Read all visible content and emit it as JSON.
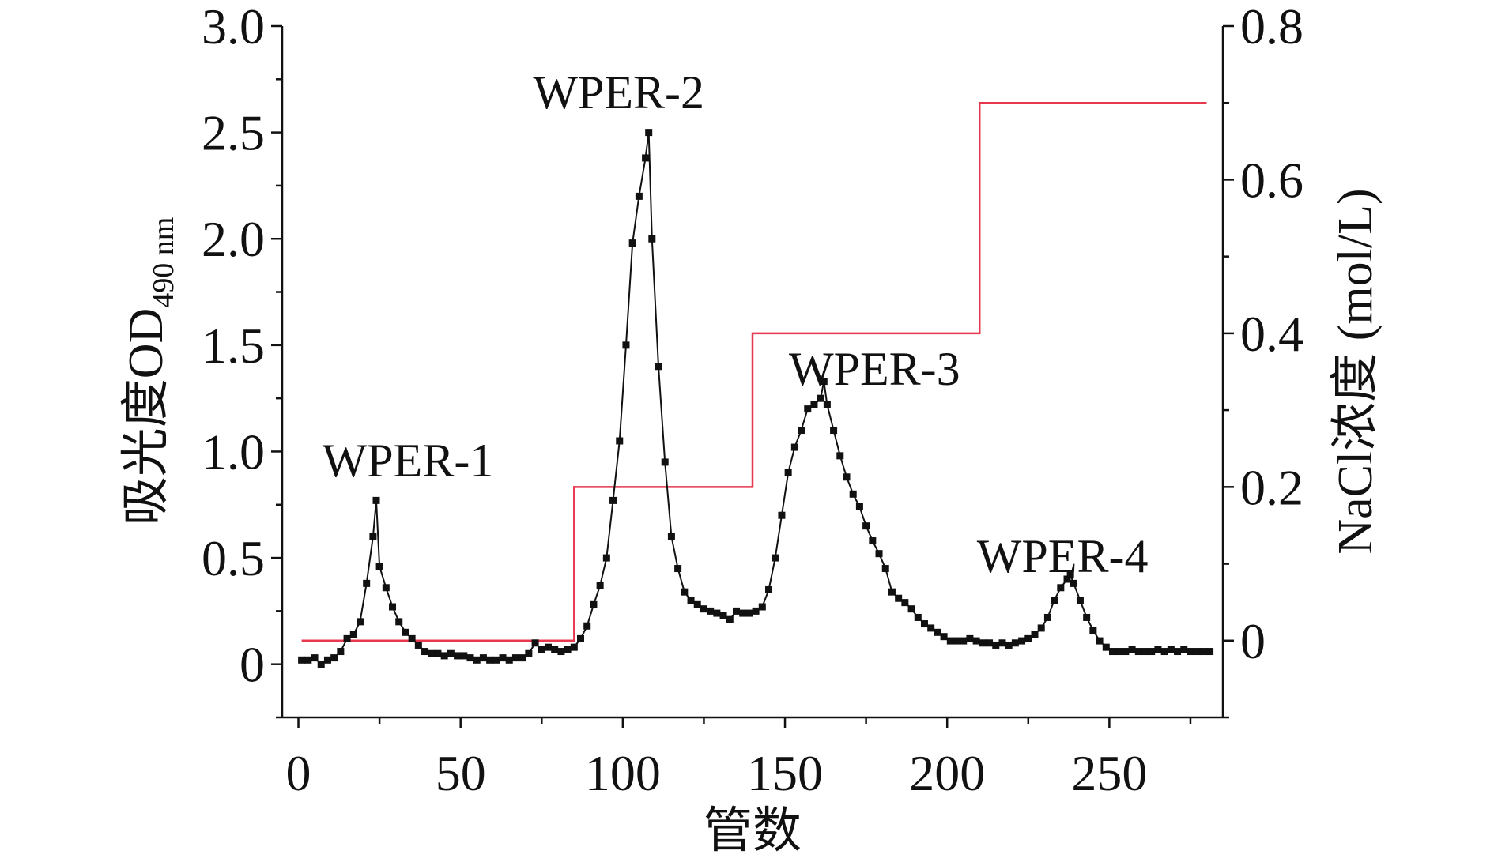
{
  "chart_data": {
    "type": "line",
    "title": "",
    "xlabel": "管数",
    "ylabel_left": "吸光度OD",
    "ylabel_left_subscript": "490 nm",
    "ylabel_right": "NaCl浓度 (mol/L)",
    "xlim": [
      -5,
      285
    ],
    "ylim_left": [
      -0.25,
      3.0
    ],
    "ylim_right": [
      -0.1,
      0.8
    ],
    "x_ticks": [
      "0",
      "50",
      "100",
      "150",
      "200",
      "250"
    ],
    "y_left_ticks": [
      "0",
      "0.5",
      "1.0",
      "1.5",
      "2.0",
      "2.5",
      "3.0"
    ],
    "y_right_ticks": [
      "0",
      "0.2",
      "0.4",
      "0.6",
      "0.8"
    ],
    "grid": false,
    "colors": {
      "absorbance": "#111111",
      "nacl": "#e8384f"
    },
    "series": [
      {
        "axis": "left",
        "marker": "square",
        "x": [
          1,
          3,
          5,
          7,
          9,
          11,
          13,
          15,
          17,
          19,
          21,
          23,
          24,
          25,
          27,
          29,
          31,
          33,
          35,
          37,
          39,
          41,
          43,
          45,
          47,
          49,
          51,
          53,
          55,
          57,
          59,
          61,
          63,
          65,
          67,
          69,
          71,
          73,
          75,
          77,
          79,
          81,
          83,
          85,
          87,
          89,
          91,
          93,
          95,
          97,
          99,
          101,
          103,
          105,
          107,
          108,
          109,
          111,
          113,
          115,
          117,
          119,
          121,
          123,
          125,
          127,
          129,
          131,
          133,
          135,
          137,
          139,
          141,
          143,
          145,
          147,
          149,
          151,
          153,
          155,
          157,
          159,
          161,
          162,
          163,
          165,
          167,
          169,
          171,
          173,
          175,
          177,
          179,
          181,
          183,
          185,
          187,
          189,
          191,
          193,
          195,
          197,
          199,
          201,
          203,
          205,
          207,
          209,
          211,
          213,
          215,
          217,
          219,
          221,
          223,
          225,
          227,
          229,
          231,
          233,
          235,
          237,
          238,
          239,
          241,
          243,
          245,
          247,
          249,
          251,
          253,
          255,
          257,
          259,
          261,
          263,
          265,
          267,
          269,
          271,
          273,
          275,
          277,
          279,
          281
        ],
        "values": [
          0.02,
          0.02,
          0.03,
          0.0,
          0.02,
          0.03,
          0.06,
          0.12,
          0.14,
          0.2,
          0.38,
          0.6,
          0.77,
          0.46,
          0.36,
          0.27,
          0.2,
          0.15,
          0.12,
          0.09,
          0.06,
          0.05,
          0.05,
          0.04,
          0.05,
          0.04,
          0.04,
          0.03,
          0.02,
          0.03,
          0.02,
          0.02,
          0.03,
          0.02,
          0.03,
          0.03,
          0.05,
          0.1,
          0.07,
          0.08,
          0.07,
          0.06,
          0.07,
          0.08,
          0.12,
          0.18,
          0.28,
          0.37,
          0.5,
          0.77,
          1.05,
          1.5,
          1.98,
          2.2,
          2.38,
          2.5,
          2.0,
          1.4,
          0.95,
          0.6,
          0.45,
          0.34,
          0.3,
          0.28,
          0.26,
          0.25,
          0.24,
          0.23,
          0.21,
          0.25,
          0.24,
          0.24,
          0.25,
          0.27,
          0.35,
          0.5,
          0.7,
          0.9,
          1.02,
          1.1,
          1.2,
          1.22,
          1.25,
          1.33,
          1.22,
          1.1,
          0.98,
          0.88,
          0.8,
          0.74,
          0.65,
          0.58,
          0.52,
          0.45,
          0.34,
          0.31,
          0.29,
          0.26,
          0.22,
          0.19,
          0.17,
          0.15,
          0.13,
          0.11,
          0.11,
          0.11,
          0.12,
          0.11,
          0.1,
          0.1,
          0.09,
          0.1,
          0.09,
          0.1,
          0.11,
          0.12,
          0.14,
          0.17,
          0.22,
          0.3,
          0.36,
          0.4,
          0.42,
          0.38,
          0.3,
          0.22,
          0.16,
          0.11,
          0.08,
          0.06,
          0.06,
          0.06,
          0.07,
          0.06,
          0.06,
          0.06,
          0.07,
          0.06,
          0.07,
          0.06,
          0.07,
          0.06,
          0.06,
          0.06,
          0.06
        ]
      },
      {
        "axis": "right",
        "style": "step",
        "x": [
          1,
          85,
          85,
          140,
          140,
          210,
          210,
          280
        ],
        "values": [
          0,
          0,
          0.2,
          0.2,
          0.4,
          0.4,
          0.7,
          0.7
        ]
      }
    ],
    "annotations": [
      "WPER-1",
      "WPER-2",
      "WPER-3",
      "WPER-4"
    ]
  }
}
